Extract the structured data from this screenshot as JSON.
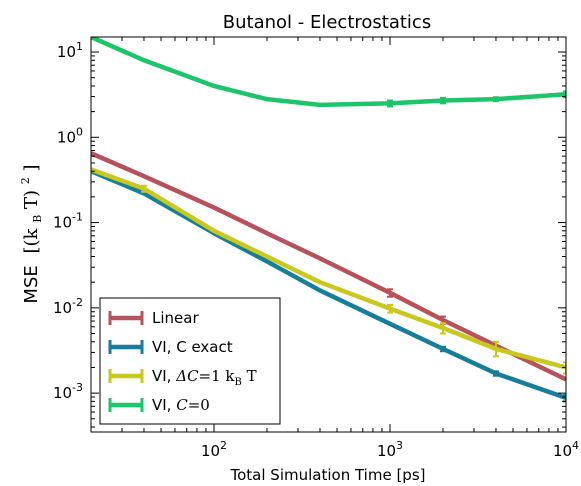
{
  "chart_data": {
    "type": "line",
    "title": "Butanol - Electrostatics",
    "xlabel": "Total Simulation Time [ps]",
    "ylabel": "MSE",
    "ylabel_unit": "[(k",
    "ylabel_unit_sub": "B",
    "ylabel_unit_tail": " T)",
    "ylabel_unit_sup": "2",
    "ylabel_unit_close": " ]",
    "x_scale": "log",
    "y_scale": "log",
    "xlim": [
      20,
      10000
    ],
    "ylim": [
      0.00035,
      15
    ],
    "x_ticks": [
      {
        "value": 100,
        "base": "10",
        "exp": "2"
      },
      {
        "value": 1000,
        "base": "10",
        "exp": "3"
      },
      {
        "value": 10000,
        "base": "10",
        "exp": "4"
      }
    ],
    "y_ticks": [
      {
        "value": 0.001,
        "base": "10",
        "exp": "-3"
      },
      {
        "value": 0.01,
        "base": "10",
        "exp": "-2"
      },
      {
        "value": 0.1,
        "base": "10",
        "exp": "-1"
      },
      {
        "value": 1,
        "base": "10",
        "exp": "0"
      },
      {
        "value": 10,
        "base": "10",
        "exp": "1"
      }
    ],
    "legend_position": "bottom-left",
    "series": [
      {
        "name": "Linear",
        "color": "#b5525c",
        "x": [
          20,
          40,
          100,
          200,
          400,
          1000,
          2000,
          4000,
          10000
        ],
        "y": [
          0.65,
          0.35,
          0.15,
          0.075,
          0.038,
          0.015,
          0.0072,
          0.0036,
          0.00145
        ],
        "err_x": [
          1000,
          2000
        ],
        "err_y": [
          [
            0.0135,
            0.0165
          ],
          [
            0.0065,
            0.0079
          ]
        ]
      },
      {
        "name": "VI, C exact",
        "color": "#167e99",
        "x": [
          20,
          40,
          100,
          200,
          400,
          1000,
          2000,
          4000,
          10000
        ],
        "y": [
          0.4,
          0.22,
          0.075,
          0.035,
          0.016,
          0.0065,
          0.0033,
          0.0017,
          0.00088
        ],
        "err_x": [
          2000,
          4000,
          10000
        ],
        "err_y": [
          [
            0.0031,
            0.0035
          ],
          [
            0.0016,
            0.0018
          ],
          [
            0.0008,
            0.00095
          ]
        ]
      },
      {
        "name": "VI, ",
        "label_math": "ΔC",
        "label_tail": "=1 k",
        "label_sub": "B",
        "label_end": " T",
        "color": "#c8c81e",
        "x": [
          20,
          40,
          100,
          200,
          400,
          1000,
          2000,
          4000,
          10000
        ],
        "y": [
          0.42,
          0.25,
          0.08,
          0.04,
          0.02,
          0.0098,
          0.0058,
          0.0033,
          0.002
        ],
        "err_x": [
          40,
          1000,
          2000,
          4000,
          10000
        ],
        "err_y": [
          [
            0.23,
            0.27
          ],
          [
            0.0088,
            0.0108
          ],
          [
            0.005,
            0.0066
          ],
          [
            0.0027,
            0.004
          ],
          [
            0.0017,
            0.0023
          ]
        ]
      },
      {
        "name": "VI, ",
        "label_math": "C",
        "label_tail": "=0",
        "color": "#1ec46a",
        "x": [
          20,
          40,
          100,
          200,
          400,
          1000,
          2000,
          4000,
          10000
        ],
        "y": [
          15,
          8,
          4.0,
          2.8,
          2.4,
          2.5,
          2.7,
          2.8,
          3.2
        ],
        "err_x": [
          1000,
          2000,
          4000,
          10000
        ],
        "err_y": [
          [
            2.3,
            2.7
          ],
          [
            2.5,
            2.9
          ],
          [
            2.65,
            2.95
          ],
          [
            2.95,
            3.45
          ]
        ]
      }
    ]
  }
}
